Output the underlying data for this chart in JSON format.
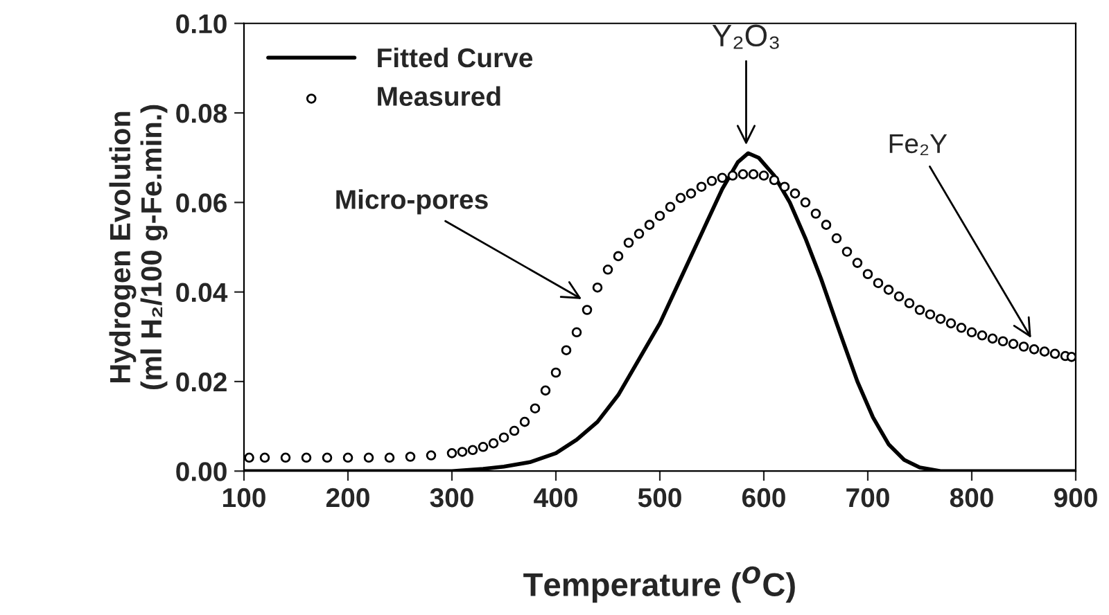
{
  "chart_data": {
    "type": "line",
    "xlabel": "Temperature ($^{O}$C)",
    "ylabel": "Hydrogen Evolution\n(ml H₂/100 g-Fe.min.)",
    "xlim": [
      100,
      900
    ],
    "xticks": [
      100,
      200,
      300,
      400,
      500,
      600,
      700,
      800,
      900
    ],
    "ylim": [
      0,
      0.1
    ],
    "yticks": [
      {
        "value": 0,
        "label": "0.00"
      },
      {
        "value": 0.02,
        "label": "0.02"
      },
      {
        "value": 0.04,
        "label": "0.04"
      },
      {
        "value": 0.06,
        "label": "0.06"
      },
      {
        "value": 0.08,
        "label": "0.08"
      },
      {
        "value": 0.1,
        "label": "0.10"
      }
    ],
    "grid": false,
    "legend": "top left",
    "series": [
      {
        "name": "Fitted Curve",
        "color": "#000000",
        "marker": "none",
        "line_style": "solid",
        "x": [
          100,
          200,
          300,
          330,
          350,
          375,
          400,
          420,
          440,
          460,
          480,
          500,
          520,
          540,
          560,
          575,
          585,
          595,
          610,
          625,
          640,
          655,
          670,
          690,
          705,
          720,
          735,
          750,
          770,
          800,
          900
        ],
        "values": [
          0,
          0,
          0,
          0.0005,
          0.001,
          0.002,
          0.004,
          0.007,
          0.011,
          0.017,
          0.025,
          0.033,
          0.043,
          0.053,
          0.063,
          0.069,
          0.071,
          0.07,
          0.066,
          0.06,
          0.052,
          0.043,
          0.033,
          0.02,
          0.012,
          0.006,
          0.0025,
          0.0008,
          0,
          0,
          0
        ]
      },
      {
        "name": "Measured",
        "type": "scatter",
        "color": "#000000",
        "marker": "circle",
        "x": [
          105,
          120,
          140,
          160,
          180,
          200,
          220,
          240,
          260,
          280,
          300,
          310,
          320,
          330,
          340,
          350,
          360,
          370,
          380,
          390,
          400,
          410,
          420,
          430,
          440,
          450,
          460,
          470,
          480,
          490,
          500,
          510,
          520,
          530,
          540,
          550,
          560,
          570,
          580,
          590,
          600,
          610,
          620,
          630,
          640,
          650,
          660,
          670,
          680,
          690,
          700,
          710,
          720,
          730,
          740,
          750,
          760,
          770,
          780,
          790,
          800,
          810,
          820,
          830,
          840,
          850,
          860,
          870,
          880,
          890,
          896
        ],
        "values": [
          0.003,
          0.003,
          0.003,
          0.003,
          0.003,
          0.003,
          0.003,
          0.003,
          0.0032,
          0.0035,
          0.004,
          0.0043,
          0.0047,
          0.0054,
          0.0062,
          0.0075,
          0.009,
          0.011,
          0.014,
          0.018,
          0.022,
          0.027,
          0.031,
          0.036,
          0.041,
          0.045,
          0.048,
          0.051,
          0.053,
          0.055,
          0.057,
          0.059,
          0.061,
          0.062,
          0.0635,
          0.0648,
          0.0655,
          0.066,
          0.0663,
          0.0663,
          0.066,
          0.065,
          0.0635,
          0.062,
          0.06,
          0.0575,
          0.055,
          0.052,
          0.049,
          0.0465,
          0.044,
          0.042,
          0.0405,
          0.039,
          0.0375,
          0.036,
          0.035,
          0.034,
          0.033,
          0.032,
          0.031,
          0.0303,
          0.0296,
          0.029,
          0.0284,
          0.0278,
          0.0272,
          0.0267,
          0.0262,
          0.0257,
          0.0255
        ]
      }
    ],
    "annotations": [
      {
        "text": "Micro-pores",
        "x": 428,
        "y": 0.038
      },
      {
        "text": "Y₂O₃",
        "x": 583,
        "y": 0.072
      },
      {
        "text": "Fe₂Y",
        "x": 859,
        "y": 0.029
      }
    ]
  }
}
